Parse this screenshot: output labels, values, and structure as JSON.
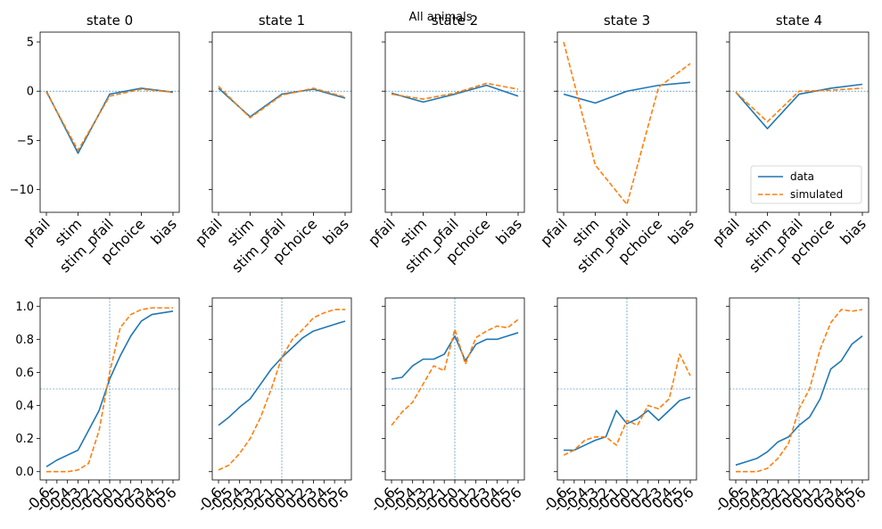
{
  "figure": {
    "suptitle": "All animals"
  },
  "colors": {
    "data": "#1f77b4",
    "simulated": "#ff7f0e",
    "reference_line": "#1f77b4"
  },
  "chart_data": {
    "type": "line",
    "title": "All animals",
    "legend": {
      "placement": "lower-right",
      "panel": 4,
      "entries": [
        "data",
        "simulated"
      ]
    },
    "top_row": {
      "categories": [
        "pfail",
        "stim",
        "stim_pfail",
        "pchoice",
        "bias"
      ],
      "yticks": [
        "5",
        "0",
        "−5",
        "−10"
      ],
      "ytick_values": [
        5,
        0,
        -5,
        -10
      ],
      "ylim": [
        -12.3,
        6.0
      ],
      "reference_y": 0,
      "panels": [
        {
          "title": "state 0",
          "series": [
            {
              "name": "data",
              "values": [
                0.0,
                -6.3,
                -0.3,
                0.3,
                -0.1
              ]
            },
            {
              "name": "simulated",
              "values": [
                -0.1,
                -6.0,
                -0.5,
                0.2,
                -0.1
              ]
            }
          ]
        },
        {
          "title": "state 1",
          "series": [
            {
              "name": "data",
              "values": [
                0.3,
                -2.6,
                -0.3,
                0.2,
                -0.7
              ]
            },
            {
              "name": "simulated",
              "values": [
                0.5,
                -2.7,
                -0.4,
                0.3,
                -0.6
              ]
            }
          ]
        },
        {
          "title": "state 2",
          "series": [
            {
              "name": "data",
              "values": [
                -0.2,
                -1.1,
                -0.3,
                0.6,
                -0.5
              ]
            },
            {
              "name": "simulated",
              "values": [
                -0.3,
                -0.8,
                -0.2,
                0.8,
                0.2
              ]
            }
          ]
        },
        {
          "title": "state 3",
          "series": [
            {
              "name": "data",
              "values": [
                -0.3,
                -1.2,
                0.0,
                0.6,
                0.9
              ]
            },
            {
              "name": "simulated",
              "values": [
                5.0,
                -7.5,
                -11.5,
                0.4,
                2.8
              ]
            }
          ]
        },
        {
          "title": "state 4",
          "series": [
            {
              "name": "data",
              "values": [
                -0.1,
                -3.8,
                -0.3,
                0.3,
                0.7
              ]
            },
            {
              "name": "simulated",
              "values": [
                -0.1,
                -3.1,
                0.0,
                0.1,
                0.3
              ]
            }
          ]
        }
      ]
    },
    "bottom_row": {
      "x": [
        -0.6,
        -0.5,
        -0.4,
        -0.3,
        -0.2,
        -0.1,
        0.0,
        0.1,
        0.2,
        0.3,
        0.4,
        0.5,
        0.6
      ],
      "xtick_labels": [
        "-0.6",
        "-0.5",
        "-0.4",
        "-0.3",
        "-0.2",
        "-0.1",
        "0.0",
        "0.1",
        "0.2",
        "0.3",
        "0.4",
        "0.5",
        "0.6"
      ],
      "yticks": [
        "1.0",
        "0.8",
        "0.6",
        "0.4",
        "0.2",
        "0.0"
      ],
      "ytick_values": [
        1.0,
        0.8,
        0.6,
        0.4,
        0.2,
        0.0
      ],
      "ylim": [
        -0.05,
        1.05
      ],
      "reference_x": 0.0,
      "reference_y": 0.5,
      "panels": [
        {
          "series": [
            {
              "name": "data",
              "values": [
                0.03,
                0.07,
                0.1,
                0.13,
                0.25,
                0.37,
                0.56,
                0.7,
                0.82,
                0.91,
                0.95,
                0.96,
                0.97
              ]
            },
            {
              "name": "simulated",
              "values": [
                0.0,
                0.0,
                0.0,
                0.01,
                0.05,
                0.25,
                0.6,
                0.87,
                0.95,
                0.98,
                0.99,
                0.99,
                0.99
              ]
            }
          ]
        },
        {
          "series": [
            {
              "name": "data",
              "values": [
                0.28,
                0.33,
                0.39,
                0.44,
                0.53,
                0.62,
                0.69,
                0.75,
                0.81,
                0.85,
                0.87,
                0.89,
                0.91
              ]
            },
            {
              "name": "simulated",
              "values": [
                0.01,
                0.04,
                0.11,
                0.2,
                0.33,
                0.5,
                0.69,
                0.8,
                0.86,
                0.93,
                0.96,
                0.98,
                0.98
              ]
            }
          ]
        },
        {
          "series": [
            {
              "name": "data",
              "values": [
                0.56,
                0.57,
                0.64,
                0.68,
                0.68,
                0.71,
                0.82,
                0.67,
                0.77,
                0.8,
                0.8,
                0.82,
                0.84
              ]
            },
            {
              "name": "simulated",
              "values": [
                0.28,
                0.36,
                0.42,
                0.53,
                0.64,
                0.61,
                0.86,
                0.65,
                0.81,
                0.85,
                0.88,
                0.87,
                0.92
              ]
            }
          ]
        },
        {
          "series": [
            {
              "name": "data",
              "values": [
                0.13,
                0.13,
                0.16,
                0.19,
                0.21,
                0.37,
                0.29,
                0.32,
                0.37,
                0.31,
                0.37,
                0.43,
                0.45
              ]
            },
            {
              "name": "simulated",
              "values": [
                0.1,
                0.13,
                0.19,
                0.21,
                0.21,
                0.16,
                0.31,
                0.28,
                0.4,
                0.38,
                0.44,
                0.71,
                0.58
              ]
            }
          ]
        },
        {
          "series": [
            {
              "name": "data",
              "values": [
                0.04,
                0.06,
                0.08,
                0.12,
                0.18,
                0.21,
                0.28,
                0.33,
                0.44,
                0.62,
                0.67,
                0.77,
                0.82
              ]
            },
            {
              "name": "simulated",
              "values": [
                0.0,
                0.0,
                0.0,
                0.02,
                0.08,
                0.17,
                0.38,
                0.5,
                0.74,
                0.9,
                0.98,
                0.97,
                0.98
              ]
            }
          ]
        }
      ]
    }
  }
}
